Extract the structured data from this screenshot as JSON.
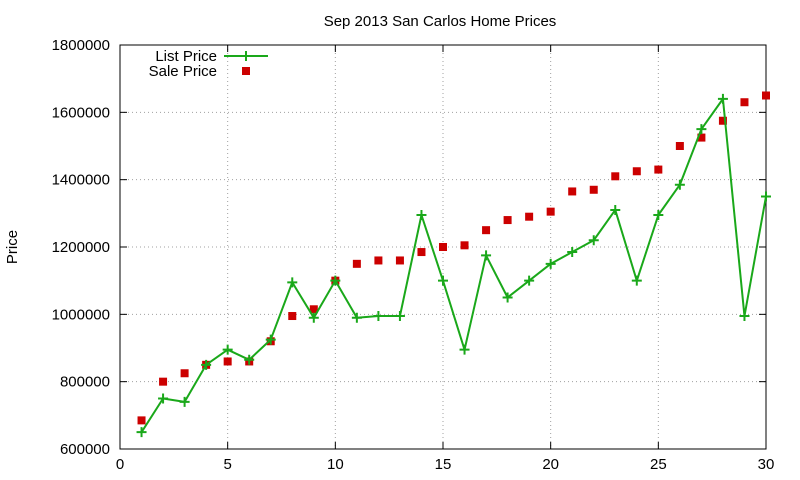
{
  "chart_data": {
    "type": "line",
    "title": "Sep 2013 San Carlos Home Prices",
    "xlabel": "",
    "ylabel": "Price",
    "xlim": [
      0,
      30
    ],
    "ylim": [
      600000,
      1800000
    ],
    "x_ticks": [
      "0",
      "5",
      "10",
      "15",
      "20",
      "25",
      "30"
    ],
    "y_ticks": [
      "600000",
      "800000",
      "1000000",
      "1200000",
      "1400000",
      "1600000",
      "1800000"
    ],
    "grid": true,
    "legend_position": "top-left",
    "x": [
      1,
      2,
      3,
      4,
      5,
      6,
      7,
      8,
      9,
      10,
      11,
      12,
      13,
      14,
      15,
      16,
      17,
      18,
      19,
      20,
      21,
      22,
      23,
      24,
      25,
      26,
      27,
      28,
      29,
      30
    ],
    "series": [
      {
        "name": "List Price",
        "style": "line-with-plus-markers",
        "color": "#1aa81a",
        "values": [
          650000,
          750000,
          740000,
          850000,
          895000,
          865000,
          925000,
          1095000,
          990000,
          1100000,
          990000,
          995000,
          995000,
          1295000,
          1100000,
          895000,
          1175000,
          1050000,
          1100000,
          1150000,
          1185000,
          1220000,
          1310000,
          1100000,
          1295000,
          1385000,
          1550000,
          1640000,
          995000,
          1350000
        ]
      },
      {
        "name": "Sale Price",
        "style": "square-markers",
        "color": "#cc0000",
        "values": [
          685000,
          800000,
          825000,
          850000,
          860000,
          860000,
          920000,
          995000,
          1015000,
          1100000,
          1150000,
          1160000,
          1160000,
          1185000,
          1200000,
          1205000,
          1250000,
          1280000,
          1290000,
          1305000,
          1365000,
          1370000,
          1410000,
          1425000,
          1430000,
          1500000,
          1525000,
          1575000,
          1630000,
          1650000
        ]
      }
    ]
  }
}
